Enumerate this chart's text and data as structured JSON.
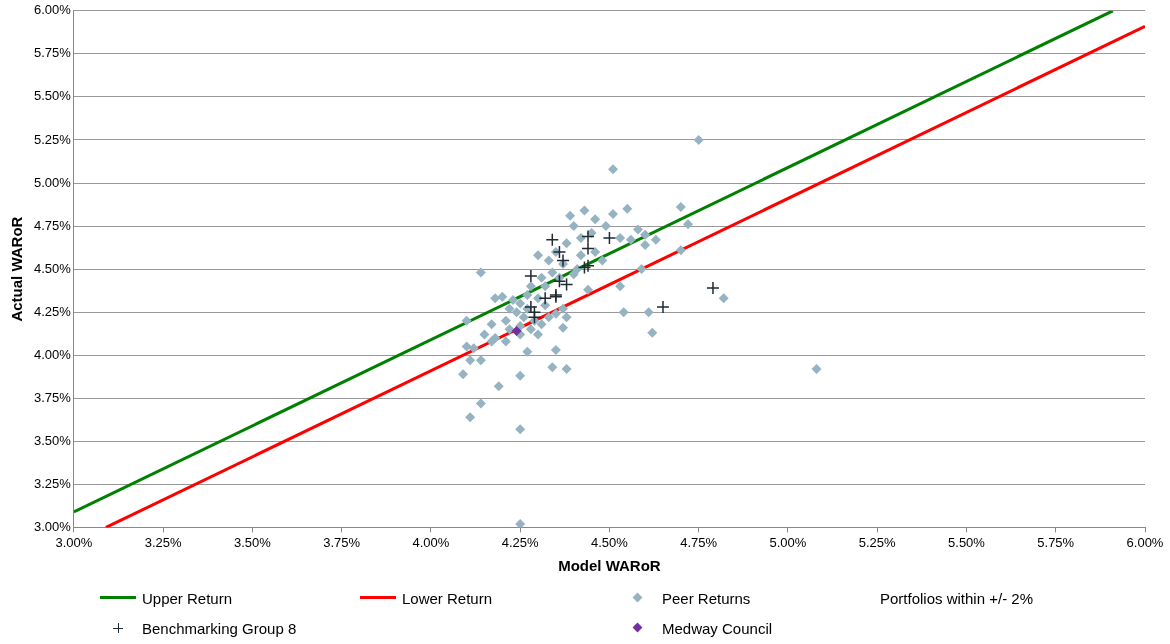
{
  "chart_data": {
    "type": "scatter",
    "xlabel": "Model WARoR",
    "ylabel": "Actual WARoR",
    "xlim": [
      3,
      6
    ],
    "ylim": [
      3,
      6
    ],
    "xticks": [
      {
        "value": 3,
        "label": "3.00%"
      },
      {
        "value": 3.25,
        "label": "3.25%"
      },
      {
        "value": 3.5,
        "label": "3.50%"
      },
      {
        "value": 3.75,
        "label": "3.75%"
      },
      {
        "value": 4,
        "label": "4.00%"
      },
      {
        "value": 4.25,
        "label": "4.25%"
      },
      {
        "value": 4.5,
        "label": "4.50%"
      },
      {
        "value": 4.75,
        "label": "4.75%"
      },
      {
        "value": 5,
        "label": "5.00%"
      },
      {
        "value": 5.25,
        "label": "5.25%"
      },
      {
        "value": 5.5,
        "label": "5.50%"
      },
      {
        "value": 5.75,
        "label": "5.75%"
      },
      {
        "value": 6,
        "label": "6.00%"
      }
    ],
    "yticks": [
      {
        "value": 3,
        "label": "3.00%"
      },
      {
        "value": 3.25,
        "label": "3.25%"
      },
      {
        "value": 3.5,
        "label": "3.50%"
      },
      {
        "value": 3.75,
        "label": "3.75%"
      },
      {
        "value": 4,
        "label": "4.00%"
      },
      {
        "value": 4.25,
        "label": "4.25%"
      },
      {
        "value": 4.5,
        "label": "4.50%"
      },
      {
        "value": 4.75,
        "label": "4.75%"
      },
      {
        "value": 5,
        "label": "5.00%"
      },
      {
        "value": 5.25,
        "label": "5.25%"
      },
      {
        "value": 5.5,
        "label": "5.50%"
      },
      {
        "value": 5.75,
        "label": "5.75%"
      },
      {
        "value": 6,
        "label": "6.00%"
      }
    ],
    "grid": "y",
    "legend": "bottom",
    "annotations": [
      "Portfolios within +/- 2%"
    ],
    "series": [
      {
        "name": "Upper Return",
        "type": "line",
        "color": "#008000",
        "marker": "none",
        "x": [
          3,
          5.91
        ],
        "values": [
          3.09,
          6.0
        ]
      },
      {
        "name": "Lower Return",
        "type": "line",
        "color": "#ff0000",
        "marker": "none",
        "x": [
          3.09,
          6.0
        ],
        "values": [
          3.0,
          5.91
        ]
      },
      {
        "name": "Peer Returns",
        "type": "scatter",
        "color": "#95b3c1",
        "marker": "diamond",
        "x": [
          4.75,
          4.51,
          4.7,
          4.55,
          4.43,
          4.51,
          4.39,
          4.46,
          4.49,
          4.4,
          4.45,
          4.58,
          4.72,
          4.63,
          4.6,
          4.56,
          4.53,
          4.6,
          4.42,
          4.38,
          4.35,
          4.33,
          4.3,
          4.37,
          4.42,
          4.46,
          4.48,
          4.41,
          4.34,
          4.31,
          4.28,
          4.32,
          4.36,
          4.4,
          4.59,
          4.7,
          4.53,
          4.44,
          4.27,
          4.3,
          4.25,
          4.23,
          4.2,
          4.18,
          4.14,
          4.22,
          4.27,
          4.32,
          4.35,
          4.26,
          4.24,
          4.29,
          4.33,
          4.37,
          4.38,
          4.31,
          4.28,
          4.25,
          4.21,
          4.17,
          4.1,
          4.15,
          4.18,
          4.22,
          4.3,
          4.25,
          4.37,
          4.54,
          4.61,
          4.62,
          4.82,
          5.08,
          4.1,
          4.12,
          4.17,
          4.21,
          4.09,
          4.11,
          4.14,
          4.19,
          4.27,
          4.35,
          4.34,
          4.38,
          4.25,
          4.14,
          4.11,
          4.25,
          4.25
        ],
        "values": [
          5.25,
          5.08,
          4.86,
          4.85,
          4.84,
          4.82,
          4.81,
          4.79,
          4.75,
          4.75,
          4.71,
          4.73,
          4.76,
          4.67,
          4.7,
          4.67,
          4.68,
          4.64,
          4.68,
          4.65,
          4.6,
          4.55,
          4.58,
          4.53,
          4.58,
          4.6,
          4.55,
          4.5,
          4.48,
          4.45,
          4.4,
          4.4,
          4.45,
          4.47,
          4.5,
          4.61,
          4.4,
          4.38,
          4.35,
          4.33,
          4.3,
          4.32,
          4.34,
          4.33,
          4.48,
          4.27,
          4.27,
          4.29,
          4.24,
          4.22,
          4.25,
          4.2,
          4.22,
          4.27,
          4.22,
          4.18,
          4.15,
          4.17,
          4.2,
          4.18,
          4.2,
          4.12,
          4.1,
          4.15,
          4.12,
          4.12,
          4.16,
          4.25,
          4.25,
          4.13,
          4.33,
          3.92,
          4.05,
          4.04,
          4.08,
          4.08,
          3.89,
          3.97,
          3.97,
          3.82,
          4.02,
          4.03,
          3.93,
          3.92,
          3.88,
          3.72,
          3.64,
          3.57,
          3.02
        ]
      },
      {
        "name": "Benchmarking Group 8",
        "type": "scatter",
        "color": "#1f2a33",
        "marker": "cross",
        "x": [
          4.34,
          4.36,
          4.37,
          4.44,
          4.5,
          4.44,
          4.43,
          4.44,
          4.38,
          4.36,
          4.28,
          4.32,
          4.35,
          4.35,
          4.28,
          4.29,
          4.29,
          4.65,
          4.79
        ],
        "values": [
          4.67,
          4.6,
          4.55,
          4.69,
          4.68,
          4.62,
          4.51,
          4.52,
          4.41,
          4.43,
          4.46,
          4.33,
          4.34,
          4.35,
          4.28,
          4.25,
          4.22,
          4.28,
          4.39
        ]
      },
      {
        "name": "Medway Council",
        "type": "scatter",
        "color": "#7030a0",
        "marker": "diamond",
        "x": [
          4.24
        ],
        "values": [
          4.14
        ]
      }
    ]
  }
}
